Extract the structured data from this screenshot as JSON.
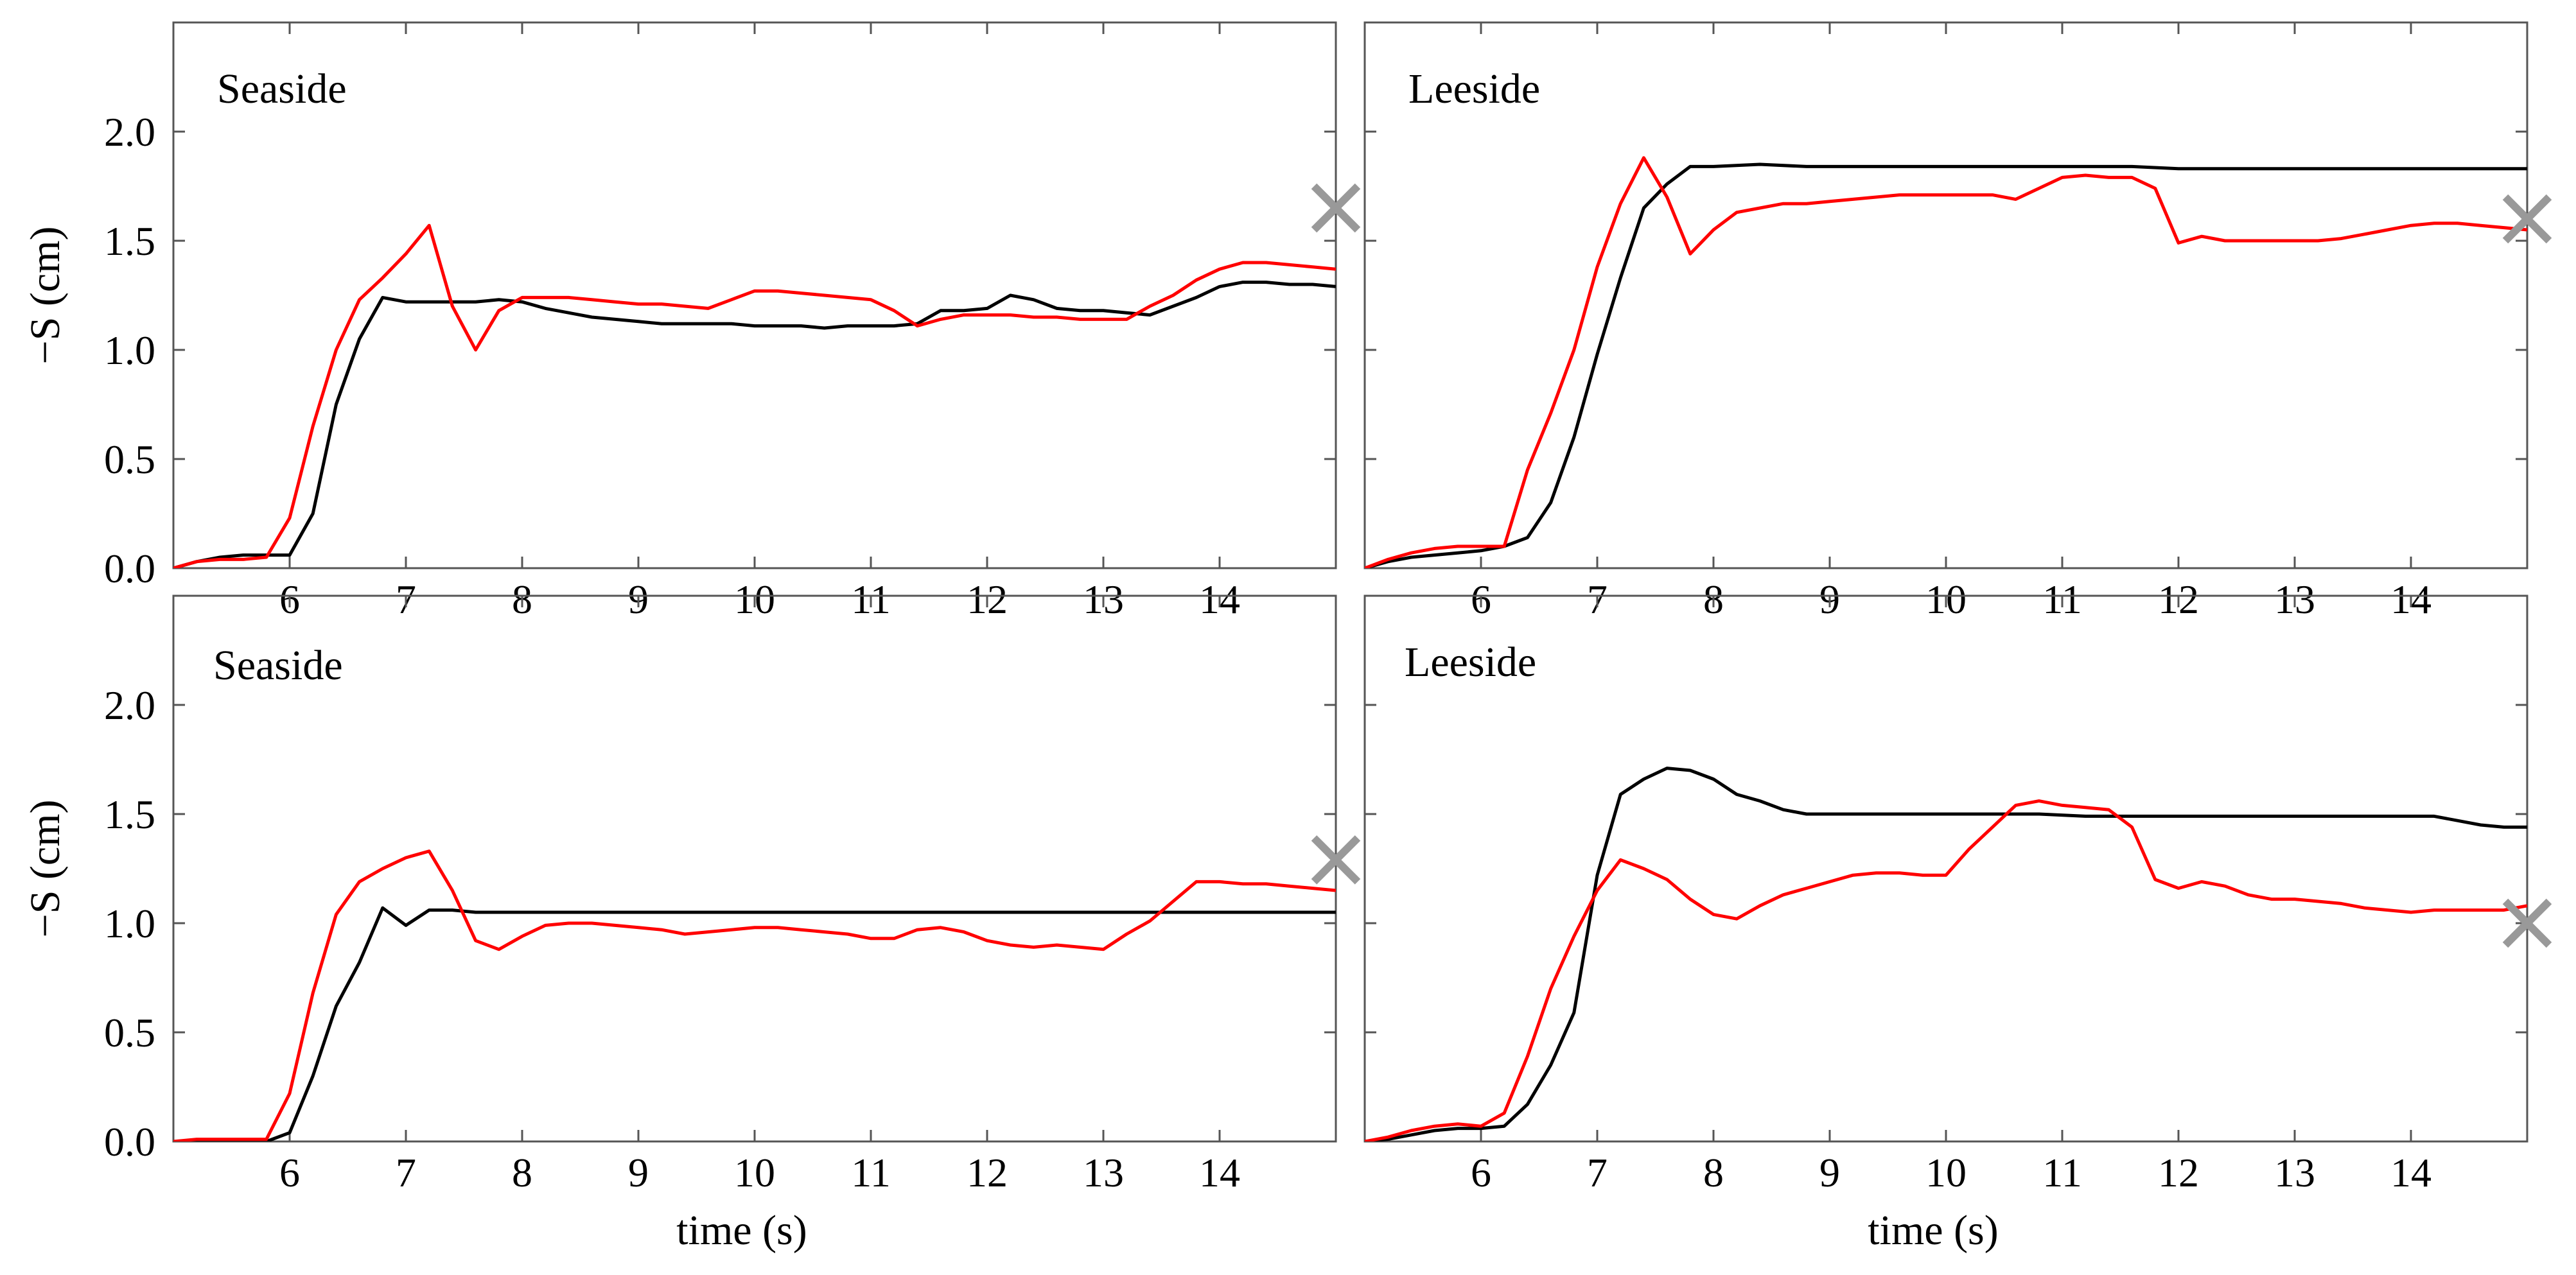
{
  "colors": {
    "measured": "#000000",
    "simulated": "#ff0000",
    "marker": "#999999",
    "frame": "#555555"
  },
  "chart_data": [
    {
      "type": "line",
      "title": "Seaside",
      "xlabel": "",
      "ylabel": "−S (cm)",
      "xlim": [
        5,
        15
      ],
      "ylim": [
        0,
        2.5
      ],
      "xticks": [
        6,
        7,
        8,
        9,
        10,
        11,
        12,
        13,
        14
      ],
      "yticks": [
        "0.0",
        "0.5",
        "1.0",
        "1.5",
        "2.0"
      ],
      "grid": false,
      "series": [
        {
          "color": "#000000",
          "x": [
            5.0,
            5.2,
            5.4,
            5.6,
            5.8,
            6.0,
            6.2,
            6.4,
            6.6,
            6.8,
            7.0,
            7.2,
            7.4,
            7.6,
            7.8,
            8.0,
            8.2,
            8.4,
            8.6,
            8.8,
            9.0,
            9.2,
            9.4,
            9.6,
            9.8,
            10.0,
            10.2,
            10.4,
            10.6,
            10.8,
            11.0,
            11.2,
            11.4,
            11.6,
            11.8,
            12.0,
            12.2,
            12.4,
            12.6,
            12.8,
            13.0,
            13.2,
            13.4,
            13.6,
            13.8,
            14.0,
            14.2,
            14.4,
            14.6,
            14.8,
            15.0
          ],
          "y": [
            0.0,
            0.03,
            0.05,
            0.06,
            0.06,
            0.06,
            0.25,
            0.75,
            1.05,
            1.24,
            1.22,
            1.22,
            1.22,
            1.22,
            1.23,
            1.22,
            1.19,
            1.17,
            1.15,
            1.14,
            1.13,
            1.12,
            1.12,
            1.12,
            1.12,
            1.11,
            1.11,
            1.11,
            1.1,
            1.11,
            1.11,
            1.11,
            1.12,
            1.18,
            1.18,
            1.19,
            1.25,
            1.23,
            1.19,
            1.18,
            1.18,
            1.17,
            1.16,
            1.2,
            1.24,
            1.29,
            1.31,
            1.31,
            1.3,
            1.3,
            1.29
          ]
        },
        {
          "color": "#ff0000",
          "x": [
            5.0,
            5.2,
            5.4,
            5.6,
            5.8,
            6.0,
            6.2,
            6.4,
            6.6,
            6.8,
            7.0,
            7.2,
            7.4,
            7.6,
            7.8,
            8.0,
            8.2,
            8.4,
            8.6,
            8.8,
            9.0,
            9.2,
            9.4,
            9.6,
            9.8,
            10.0,
            10.2,
            10.4,
            10.6,
            10.8,
            11.0,
            11.2,
            11.4,
            11.6,
            11.8,
            12.0,
            12.2,
            12.4,
            12.6,
            12.8,
            13.0,
            13.2,
            13.4,
            13.6,
            13.8,
            14.0,
            14.2,
            14.4,
            14.6,
            14.8,
            15.0
          ],
          "y": [
            0.0,
            0.03,
            0.04,
            0.04,
            0.05,
            0.23,
            0.65,
            1.0,
            1.23,
            1.33,
            1.44,
            1.57,
            1.2,
            1.0,
            1.18,
            1.24,
            1.24,
            1.24,
            1.23,
            1.22,
            1.21,
            1.21,
            1.2,
            1.19,
            1.23,
            1.27,
            1.27,
            1.26,
            1.25,
            1.24,
            1.23,
            1.18,
            1.11,
            1.14,
            1.16,
            1.16,
            1.16,
            1.15,
            1.15,
            1.14,
            1.14,
            1.14,
            1.2,
            1.25,
            1.32,
            1.37,
            1.4,
            1.4,
            1.39,
            1.38,
            1.37
          ]
        }
      ],
      "markers": [
        {
          "x": 15.0,
          "y": 1.65
        }
      ]
    },
    {
      "type": "line",
      "title": "Leeside",
      "xlabel": "",
      "ylabel": "",
      "xlim": [
        5,
        15
      ],
      "ylim": [
        0,
        2.5
      ],
      "xticks": [
        6,
        7,
        8,
        9,
        10,
        11,
        12,
        13,
        14
      ],
      "yticks": [],
      "grid": false,
      "series": [
        {
          "color": "#000000",
          "x": [
            5.0,
            5.2,
            5.4,
            5.6,
            5.8,
            6.0,
            6.2,
            6.4,
            6.6,
            6.8,
            7.0,
            7.2,
            7.4,
            7.6,
            7.8,
            8.0,
            8.4,
            8.8,
            9.2,
            9.6,
            10.0,
            10.4,
            10.8,
            11.2,
            11.6,
            12.0,
            12.4,
            12.8,
            13.2,
            13.6,
            14.0,
            14.4,
            14.8,
            15.0
          ],
          "y": [
            0.0,
            0.03,
            0.05,
            0.06,
            0.07,
            0.08,
            0.1,
            0.14,
            0.3,
            0.6,
            0.98,
            1.33,
            1.65,
            1.76,
            1.84,
            1.84,
            1.85,
            1.84,
            1.84,
            1.84,
            1.84,
            1.84,
            1.84,
            1.84,
            1.84,
            1.83,
            1.83,
            1.83,
            1.83,
            1.83,
            1.83,
            1.83,
            1.83,
            1.83
          ]
        },
        {
          "color": "#ff0000",
          "x": [
            5.0,
            5.2,
            5.4,
            5.6,
            5.8,
            6.0,
            6.2,
            6.4,
            6.6,
            6.8,
            7.0,
            7.2,
            7.4,
            7.6,
            7.8,
            8.0,
            8.2,
            8.4,
            8.6,
            8.8,
            9.0,
            9.2,
            9.4,
            9.6,
            9.8,
            10.0,
            10.2,
            10.4,
            10.6,
            10.8,
            11.0,
            11.2,
            11.4,
            11.6,
            11.8,
            12.0,
            12.2,
            12.4,
            12.6,
            12.8,
            13.0,
            13.2,
            13.4,
            13.6,
            13.8,
            14.0,
            14.2,
            14.4,
            14.6,
            14.8,
            15.0
          ],
          "y": [
            0.0,
            0.04,
            0.07,
            0.09,
            0.1,
            0.1,
            0.1,
            0.45,
            0.71,
            1.0,
            1.38,
            1.67,
            1.88,
            1.7,
            1.44,
            1.55,
            1.63,
            1.65,
            1.67,
            1.67,
            1.68,
            1.69,
            1.7,
            1.71,
            1.71,
            1.71,
            1.71,
            1.71,
            1.69,
            1.74,
            1.79,
            1.8,
            1.79,
            1.79,
            1.74,
            1.49,
            1.52,
            1.5,
            1.5,
            1.5,
            1.5,
            1.5,
            1.51,
            1.53,
            1.55,
            1.57,
            1.58,
            1.58,
            1.57,
            1.56,
            1.55
          ]
        }
      ],
      "markers": [
        {
          "x": 15.0,
          "y": 1.6
        }
      ]
    },
    {
      "type": "line",
      "title": "Seaside",
      "xlabel": "time (s)",
      "ylabel": "−S (cm)",
      "xlim": [
        5,
        15
      ],
      "ylim": [
        0,
        2.5
      ],
      "xticks": [
        6,
        7,
        8,
        9,
        10,
        11,
        12,
        13,
        14
      ],
      "yticks": [
        "0.0",
        "0.5",
        "1.0",
        "1.5",
        "2.0"
      ],
      "grid": false,
      "series": [
        {
          "color": "#000000",
          "x": [
            5.0,
            5.2,
            5.4,
            5.6,
            5.8,
            6.0,
            6.2,
            6.4,
            6.6,
            6.8,
            7.0,
            7.2,
            7.4,
            7.6,
            7.8,
            8.2,
            8.6,
            9.0,
            9.4,
            9.8,
            10.2,
            10.6,
            11.0,
            11.4,
            11.8,
            12.2,
            12.6,
            13.0,
            13.4,
            13.8,
            14.2,
            14.6,
            15.0
          ],
          "y": [
            0.0,
            0.0,
            0.0,
            0.0,
            0.0,
            0.04,
            0.3,
            0.62,
            0.82,
            1.07,
            0.99,
            1.06,
            1.06,
            1.05,
            1.05,
            1.05,
            1.05,
            1.05,
            1.05,
            1.05,
            1.05,
            1.05,
            1.05,
            1.05,
            1.05,
            1.05,
            1.05,
            1.05,
            1.05,
            1.05,
            1.05,
            1.05,
            1.05
          ]
        },
        {
          "color": "#ff0000",
          "x": [
            5.0,
            5.2,
            5.4,
            5.6,
            5.8,
            6.0,
            6.2,
            6.4,
            6.6,
            6.8,
            7.0,
            7.2,
            7.4,
            7.6,
            7.8,
            8.0,
            8.2,
            8.4,
            8.6,
            8.8,
            9.0,
            9.2,
            9.4,
            9.6,
            9.8,
            10.0,
            10.2,
            10.4,
            10.6,
            10.8,
            11.0,
            11.2,
            11.4,
            11.6,
            11.8,
            12.0,
            12.2,
            12.4,
            12.6,
            12.8,
            13.0,
            13.2,
            13.4,
            13.6,
            13.8,
            14.0,
            14.2,
            14.4,
            14.6,
            14.8,
            15.0
          ],
          "y": [
            0.0,
            0.01,
            0.01,
            0.01,
            0.01,
            0.22,
            0.68,
            1.04,
            1.19,
            1.25,
            1.3,
            1.33,
            1.15,
            0.92,
            0.88,
            0.94,
            0.99,
            1.0,
            1.0,
            0.99,
            0.98,
            0.97,
            0.95,
            0.96,
            0.97,
            0.98,
            0.98,
            0.97,
            0.96,
            0.95,
            0.93,
            0.93,
            0.97,
            0.98,
            0.96,
            0.92,
            0.9,
            0.89,
            0.9,
            0.89,
            0.88,
            0.95,
            1.01,
            1.1,
            1.19,
            1.19,
            1.18,
            1.18,
            1.17,
            1.16,
            1.15
          ]
        }
      ],
      "markers": [
        {
          "x": 15.0,
          "y": 1.29
        }
      ]
    },
    {
      "type": "line",
      "title": "Leeside",
      "xlabel": "time (s)",
      "ylabel": "",
      "xlim": [
        5,
        15
      ],
      "ylim": [
        0,
        2.5
      ],
      "xticks": [
        6,
        7,
        8,
        9,
        10,
        11,
        12,
        13,
        14
      ],
      "yticks": [],
      "grid": false,
      "series": [
        {
          "color": "#000000",
          "x": [
            5.0,
            5.2,
            5.4,
            5.6,
            5.8,
            6.0,
            6.2,
            6.4,
            6.6,
            6.8,
            7.0,
            7.2,
            7.4,
            7.6,
            7.8,
            8.0,
            8.2,
            8.4,
            8.6,
            8.8,
            9.2,
            9.6,
            10.0,
            10.4,
            10.8,
            11.2,
            11.6,
            12.0,
            12.4,
            12.8,
            13.2,
            13.6,
            14.0,
            14.2,
            14.4,
            14.6,
            14.8,
            15.0
          ],
          "y": [
            0.0,
            0.01,
            0.03,
            0.05,
            0.06,
            0.06,
            0.07,
            0.17,
            0.35,
            0.59,
            1.22,
            1.59,
            1.66,
            1.71,
            1.7,
            1.66,
            1.59,
            1.56,
            1.52,
            1.5,
            1.5,
            1.5,
            1.5,
            1.5,
            1.5,
            1.49,
            1.49,
            1.49,
            1.49,
            1.49,
            1.49,
            1.49,
            1.49,
            1.49,
            1.47,
            1.45,
            1.44,
            1.44
          ]
        },
        {
          "color": "#ff0000",
          "x": [
            5.0,
            5.2,
            5.4,
            5.6,
            5.8,
            6.0,
            6.2,
            6.4,
            6.6,
            6.8,
            7.0,
            7.2,
            7.4,
            7.6,
            7.8,
            8.0,
            8.2,
            8.4,
            8.6,
            8.8,
            9.0,
            9.2,
            9.4,
            9.6,
            9.8,
            10.0,
            10.2,
            10.4,
            10.6,
            10.8,
            11.0,
            11.2,
            11.4,
            11.6,
            11.8,
            12.0,
            12.2,
            12.4,
            12.6,
            12.8,
            13.0,
            13.2,
            13.4,
            13.6,
            13.8,
            14.0,
            14.2,
            14.4,
            14.6,
            14.8,
            15.0
          ],
          "y": [
            0.0,
            0.02,
            0.05,
            0.07,
            0.08,
            0.07,
            0.13,
            0.39,
            0.7,
            0.94,
            1.15,
            1.29,
            1.25,
            1.2,
            1.11,
            1.04,
            1.02,
            1.08,
            1.13,
            1.16,
            1.19,
            1.22,
            1.23,
            1.23,
            1.22,
            1.22,
            1.34,
            1.44,
            1.54,
            1.56,
            1.54,
            1.53,
            1.52,
            1.44,
            1.2,
            1.16,
            1.19,
            1.17,
            1.13,
            1.11,
            1.11,
            1.1,
            1.09,
            1.07,
            1.06,
            1.05,
            1.06,
            1.06,
            1.06,
            1.06,
            1.08
          ]
        }
      ],
      "markers": [
        {
          "x": 15.0,
          "y": 1.0
        }
      ]
    }
  ]
}
